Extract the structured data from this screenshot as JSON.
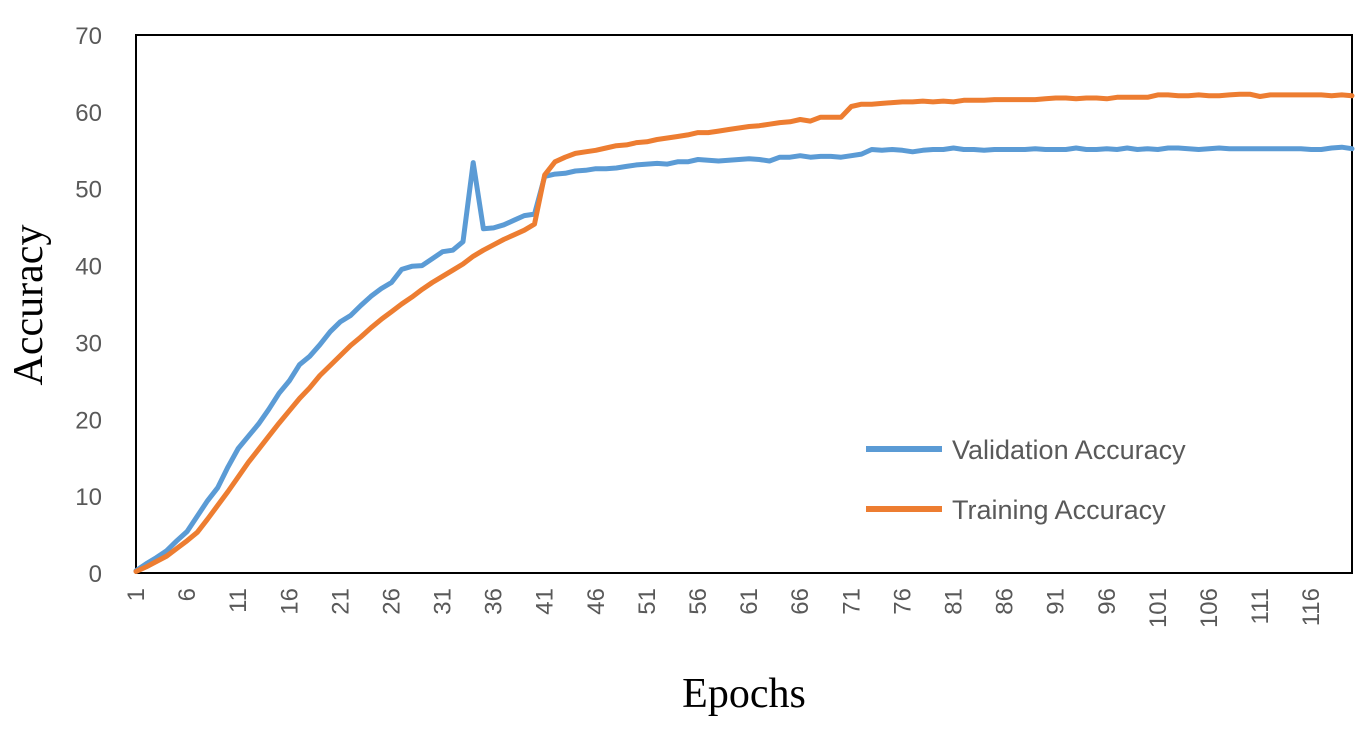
{
  "chart_data": {
    "type": "line",
    "title": "",
    "xlabel": "Epochs",
    "ylabel": "Accuracy",
    "ylim": [
      0,
      70
    ],
    "xlim": [
      1,
      120
    ],
    "yticks": [
      "0",
      "10",
      "20",
      "30",
      "40",
      "50",
      "60",
      "70"
    ],
    "xticks": [
      "1",
      "6",
      "11",
      "16",
      "21",
      "26",
      "31",
      "36",
      "41",
      "46",
      "51",
      "56",
      "61",
      "66",
      "71",
      "76",
      "81",
      "86",
      "91",
      "96",
      "101",
      "106",
      "111",
      "116"
    ],
    "grid": false,
    "legend_position": "bottom-right",
    "series": [
      {
        "name": "Validation Accuracy",
        "color": "#5B9BD5",
        "values": [
          0.3,
          1.2,
          2.0,
          2.9,
          4.2,
          5.4,
          7.4,
          9.4,
          11.1,
          13.8,
          16.2,
          17.8,
          19.4,
          21.3,
          23.4,
          25.0,
          27.1,
          28.2,
          29.7,
          31.4,
          32.7,
          33.5,
          34.8,
          36.0,
          37.0,
          37.8,
          39.5,
          39.9,
          40.0,
          40.9,
          41.8,
          42.0,
          43.1,
          53.4,
          44.8,
          44.9,
          45.3,
          45.9,
          46.5,
          46.7,
          51.6,
          51.9,
          52.0,
          52.3,
          52.4,
          52.6,
          52.6,
          52.7,
          52.9,
          53.1,
          53.2,
          53.3,
          53.2,
          53.5,
          53.5,
          53.8,
          53.7,
          53.6,
          53.7,
          53.8,
          53.9,
          53.8,
          53.6,
          54.1,
          54.1,
          54.3,
          54.1,
          54.2,
          54.2,
          54.1,
          54.3,
          54.5,
          55.1,
          55.0,
          55.1,
          55.0,
          54.8,
          55.0,
          55.1,
          55.1,
          55.3,
          55.1,
          55.1,
          55.0,
          55.1,
          55.1,
          55.1,
          55.1,
          55.2,
          55.1,
          55.1,
          55.1,
          55.3,
          55.1,
          55.1,
          55.2,
          55.1,
          55.3,
          55.1,
          55.2,
          55.1,
          55.3,
          55.3,
          55.2,
          55.1,
          55.2,
          55.3,
          55.2,
          55.2,
          55.2,
          55.2,
          55.2,
          55.2,
          55.2,
          55.2,
          55.1,
          55.1,
          55.3,
          55.4,
          55.2
        ]
      },
      {
        "name": "Training Accuracy",
        "color": "#ED7D31",
        "values": [
          0.2,
          0.8,
          1.5,
          2.2,
          3.2,
          4.2,
          5.3,
          7.0,
          8.8,
          10.6,
          12.5,
          14.4,
          16.1,
          17.8,
          19.5,
          21.1,
          22.7,
          24.1,
          25.7,
          27.0,
          28.3,
          29.6,
          30.7,
          31.9,
          33.0,
          34.0,
          35.0,
          35.9,
          36.9,
          37.8,
          38.6,
          39.4,
          40.2,
          41.2,
          42.0,
          42.7,
          43.4,
          44.0,
          44.6,
          45.4,
          51.8,
          53.5,
          54.1,
          54.6,
          54.8,
          55.0,
          55.3,
          55.6,
          55.7,
          56.0,
          56.1,
          56.4,
          56.6,
          56.8,
          57.0,
          57.3,
          57.3,
          57.5,
          57.7,
          57.9,
          58.1,
          58.2,
          58.4,
          58.6,
          58.7,
          59.0,
          58.8,
          59.3,
          59.3,
          59.3,
          60.7,
          61.0,
          61.0,
          61.1,
          61.2,
          61.3,
          61.3,
          61.4,
          61.3,
          61.4,
          61.3,
          61.5,
          61.5,
          61.5,
          61.6,
          61.6,
          61.6,
          61.6,
          61.6,
          61.7,
          61.8,
          61.8,
          61.7,
          61.8,
          61.8,
          61.7,
          61.9,
          61.9,
          61.9,
          61.9,
          62.2,
          62.2,
          62.1,
          62.1,
          62.2,
          62.1,
          62.1,
          62.2,
          62.3,
          62.3,
          62.0,
          62.2,
          62.2,
          62.2,
          62.2,
          62.2,
          62.2,
          62.1,
          62.2,
          62.1
        ]
      }
    ]
  }
}
